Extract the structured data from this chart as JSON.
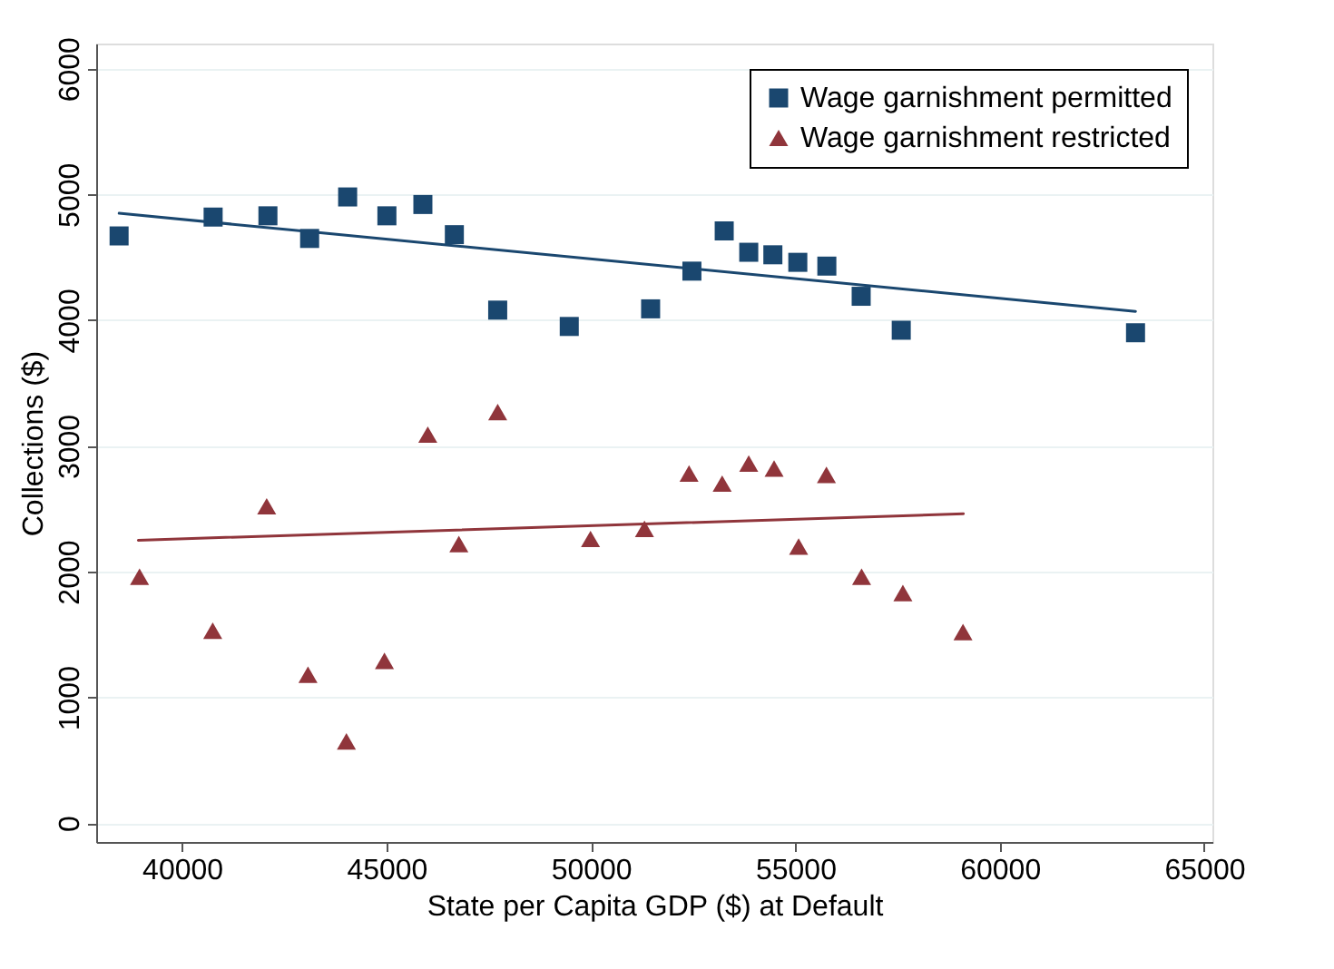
{
  "chart_data": {
    "type": "scatter",
    "xlabel": "State per Capita GDP ($) at Default",
    "ylabel": "Collections ($)",
    "xlim": [
      37900,
      65200
    ],
    "xticks": [
      40000,
      45000,
      50000,
      55000,
      60000,
      65000
    ],
    "ylim": [
      -150,
      6200
    ],
    "yticks": [
      0,
      1000,
      2000,
      3000,
      4000,
      5000,
      6000
    ],
    "grid": "y",
    "legend": "top right",
    "series": [
      {
        "name": "Wage garnishment permitted",
        "marker": "square",
        "color": "#1a476f",
        "x": [
          38460,
          40760,
          42100,
          43120,
          44050,
          45010,
          45890,
          46660,
          47720,
          49470,
          51460,
          52470,
          53260,
          53860,
          54450,
          55060,
          55770,
          56610,
          57590,
          63320
        ],
        "values": [
          4670,
          4820,
          4830,
          4650,
          4980,
          4830,
          4920,
          4680,
          4080,
          3950,
          4090,
          4390,
          4710,
          4540,
          4520,
          4460,
          4430,
          4190,
          3920,
          3900
        ]
      },
      {
        "name": "Wage garnishment restricted",
        "marker": "triangle",
        "color": "#90353b",
        "x": [
          38960,
          40750,
          42070,
          43080,
          44020,
          44950,
          46010,
          46770,
          47720,
          49990,
          51310,
          52400,
          53210,
          53860,
          54480,
          55080,
          55760,
          56620,
          57630,
          59100
        ],
        "values": [
          1960,
          1530,
          2520,
          1180,
          650,
          1290,
          3090,
          2220,
          3270,
          2260,
          2340,
          2780,
          2700,
          2860,
          2820,
          2200,
          2770,
          1960,
          1830,
          1520
        ]
      },
      {
        "type": "line",
        "color": "#1a476f",
        "x": [
          38460,
          63320
        ],
        "values": [
          4850,
          4070
        ]
      },
      {
        "type": "line",
        "color": "#90353b",
        "x": [
          38930,
          59110
        ],
        "values": [
          2250,
          2460
        ]
      }
    ]
  }
}
